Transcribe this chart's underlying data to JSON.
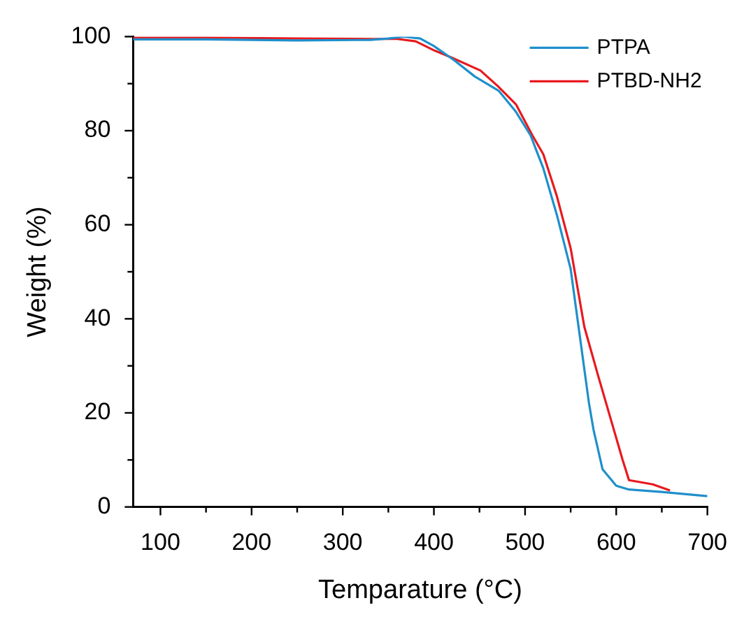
{
  "chart_data": {
    "type": "line",
    "xlabel": "Temparature (°C)",
    "ylabel": "Weight (%)",
    "xlim": [
      70,
      700
    ],
    "xticks": [
      100,
      {
        "value": 150,
        "label": null
      },
      200,
      {
        "value": 250,
        "label": null
      },
      300,
      {
        "value": 350,
        "label": null
      },
      400,
      {
        "value": 450,
        "label": null
      },
      500,
      {
        "value": 550,
        "label": null
      },
      600,
      {
        "value": 650,
        "label": null
      },
      700
    ],
    "ylim": [
      0,
      100
    ],
    "yticks": [
      0,
      {
        "value": 10,
        "label": null
      },
      20,
      {
        "value": 30,
        "label": null
      },
      40,
      {
        "value": 50,
        "label": null
      },
      60,
      {
        "value": 70,
        "label": null
      },
      80,
      {
        "value": 90,
        "label": null
      },
      100
    ],
    "grid": false,
    "legend": "top right",
    "marker": "none",
    "line_style": "solid",
    "series": [
      {
        "name": "PTPA",
        "color": "#1f8fcb",
        "x": [
          70,
          150,
          250,
          330,
          350,
          367,
          385,
          400,
          422,
          445,
          471,
          490,
          506,
          520,
          535,
          550,
          560,
          570,
          575,
          585,
          600,
          614,
          650,
          700
        ],
        "values": [
          99.4,
          99.4,
          99.2,
          99.3,
          99.6,
          100,
          99.6,
          98,
          95,
          91.5,
          88.5,
          84,
          79,
          72,
          62,
          50.6,
          36.4,
          22.2,
          16.5,
          8,
          4.5,
          3.7,
          3.2,
          2.3
        ]
      },
      {
        "name": "PTBD-NH2",
        "color": "#e8191e",
        "x": [
          70,
          150,
          250,
          330,
          360,
          380,
          401,
          420,
          451,
          470,
          490,
          508,
          520,
          535,
          550,
          565,
          580,
          595,
          607,
          614,
          640,
          659
        ],
        "values": [
          99.8,
          99.8,
          99.6,
          99.5,
          99.5,
          99,
          97,
          95.5,
          92.8,
          89.5,
          85.6,
          79,
          75,
          66,
          55,
          38.3,
          28,
          18,
          10,
          5.7,
          4.8,
          3.5
        ]
      }
    ]
  }
}
